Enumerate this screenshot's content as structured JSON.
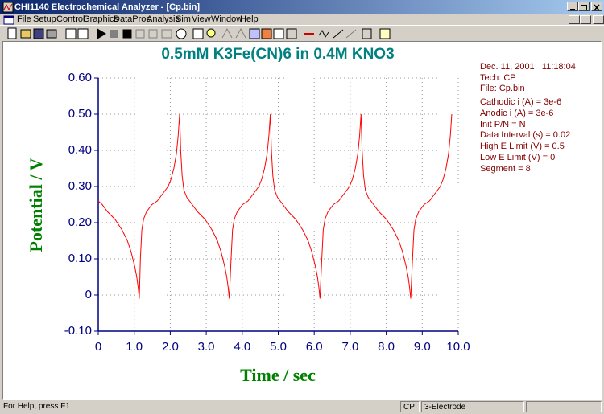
{
  "window": {
    "title": "CHI1140 Electrochemical Analyzer - [Cp.bin]"
  },
  "menu": [
    "File",
    "Setup",
    "Control",
    "Graphics",
    "DataProc",
    "Analysis",
    "Sim",
    "View",
    "Window",
    "Help"
  ],
  "chart_data": {
    "type": "line",
    "title": "0.5mM K3Fe(CN)6 in 0.4M KNO3",
    "x_label": "Time / sec",
    "y_label": "Potential / V",
    "annotations": [
      "Dec. 11, 2001   11:18:04",
      "Tech: CP",
      "File: Cp.bin",
      "Cathodic i (A) = 3e-6",
      "Anodic i (A) = 3e-6",
      "Init P/N = N",
      "Data Interval (s) = 0.02",
      "High E Limit (V) = 0.5",
      "Low E Limit (V) = 0",
      "Segment = 8"
    ],
    "x": [
      0,
      0.11,
      0.26,
      0.46,
      0.66,
      0.81,
      0.91,
      1.01,
      1.07,
      1.11,
      1.14,
      1.17,
      1.21,
      1.26,
      1.34,
      1.49,
      1.64,
      1.79,
      1.94,
      2.02,
      2.1,
      2.17,
      2.22,
      2.26,
      2.29,
      2.33,
      2.38,
      2.46,
      2.61,
      2.76,
      2.96,
      3.16,
      3.31,
      3.41,
      3.51,
      3.57,
      3.61,
      3.64,
      3.69,
      3.73,
      3.78,
      3.86,
      4.01,
      4.16,
      4.31,
      4.46,
      4.54,
      4.62,
      4.69,
      4.74,
      4.78,
      4.81,
      4.85,
      4.9,
      4.98,
      5.13,
      5.28,
      5.48,
      5.68,
      5.83,
      5.93,
      6.03,
      6.09,
      6.13,
      6.16,
      6.21,
      6.25,
      6.3,
      6.38,
      6.53,
      6.68,
      6.83,
      6.98,
      7.06,
      7.14,
      7.21,
      7.26,
      7.3,
      7.33,
      7.37,
      7.42,
      7.5,
      7.65,
      7.8,
      8.0,
      8.2,
      8.35,
      8.45,
      8.55,
      8.61,
      8.65,
      8.68,
      8.73,
      8.77,
      8.82,
      8.9,
      9.05,
      9.2,
      9.35,
      9.5,
      9.58,
      9.66,
      9.73,
      9.78,
      9.82
    ],
    "series": [
      {
        "color": "#ff0000",
        "values": [
          0.26,
          0.25,
          0.23,
          0.21,
          0.18,
          0.15,
          0.12,
          0.08,
          0.05,
          0.02,
          -0.01,
          0.1,
          0.18,
          0.21,
          0.23,
          0.25,
          0.26,
          0.28,
          0.3,
          0.32,
          0.35,
          0.39,
          0.44,
          0.5,
          0.4,
          0.33,
          0.29,
          0.27,
          0.25,
          0.23,
          0.21,
          0.18,
          0.15,
          0.12,
          0.08,
          0.05,
          0.02,
          -0.01,
          0.1,
          0.18,
          0.21,
          0.23,
          0.25,
          0.26,
          0.28,
          0.3,
          0.32,
          0.35,
          0.39,
          0.44,
          0.5,
          0.4,
          0.33,
          0.29,
          0.27,
          0.25,
          0.23,
          0.21,
          0.18,
          0.15,
          0.12,
          0.08,
          0.05,
          0.02,
          -0.01,
          0.1,
          0.18,
          0.21,
          0.23,
          0.25,
          0.26,
          0.28,
          0.3,
          0.32,
          0.35,
          0.39,
          0.44,
          0.5,
          0.4,
          0.33,
          0.29,
          0.27,
          0.25,
          0.23,
          0.21,
          0.18,
          0.15,
          0.12,
          0.08,
          0.05,
          0.02,
          -0.01,
          0.1,
          0.18,
          0.21,
          0.23,
          0.25,
          0.26,
          0.28,
          0.3,
          0.32,
          0.35,
          0.39,
          0.44,
          0.5
        ]
      }
    ],
    "xlim": [
      0,
      10
    ],
    "ylim": [
      -0.1,
      0.6
    ],
    "xticks": [
      0,
      {
        "value": 1,
        "label": "1.0"
      },
      {
        "value": 2,
        "label": "2.0"
      },
      {
        "value": 3,
        "label": "3.0"
      },
      {
        "value": 4,
        "label": "4.0"
      },
      {
        "value": 5,
        "label": "5.0"
      },
      {
        "value": 6,
        "label": "6.0"
      },
      {
        "value": 7,
        "label": "7.0"
      },
      {
        "value": 8,
        "label": "8.0"
      },
      {
        "value": 9,
        "label": "9.0"
      },
      {
        "value": 10,
        "label": "10.0"
      }
    ],
    "yticks": [
      {
        "value": -0.1,
        "label": "-0.10"
      },
      0,
      {
        "value": 0.1,
        "label": "0.10"
      },
      {
        "value": 0.2,
        "label": "0.20"
      },
      {
        "value": 0.3,
        "label": "0.30"
      },
      {
        "value": 0.4,
        "label": "0.40"
      },
      {
        "value": 0.5,
        "label": "0.50"
      },
      {
        "value": 0.6,
        "label": "0.60"
      }
    ],
    "grid": true
  },
  "status_bar": [
    "For Help, press F1",
    "CP",
    "3-Electrode"
  ]
}
